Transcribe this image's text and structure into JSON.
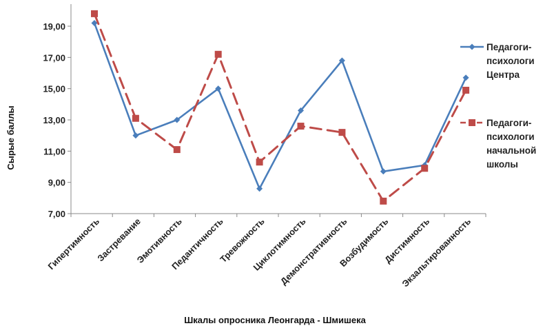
{
  "chart_data": {
    "type": "line",
    "ylabel": "Сырые баллы",
    "xlabel": "Шкалы опросника  Леонгарда - Шмишека",
    "ylim": [
      7,
      20
    ],
    "yticks": [
      "7,00",
      "9,00",
      "11,00",
      "13,00",
      "15,00",
      "17,00",
      "19,00"
    ],
    "grid": false,
    "legend_position": "right",
    "categories": [
      "Гипертимность",
      "Застревание",
      "Эмотивность",
      "Педантичность",
      "Тревожность",
      "Циклотимность",
      "Демонстративность",
      "Возбудимость",
      "Дистимность",
      "Экзальтированность"
    ],
    "series": [
      {
        "name_lines": [
          "Педагоги-",
          "психологи",
          "Центра"
        ],
        "color": "#4a7ebb",
        "style": "solid",
        "marker": "diamond",
        "values": [
          19.2,
          12.0,
          13.0,
          15.0,
          8.6,
          13.6,
          16.8,
          9.7,
          10.1,
          15.7
        ]
      },
      {
        "name_lines": [
          "Педагоги-",
          "психологи",
          "начальной",
          "школы"
        ],
        "color": "#be4b48",
        "style": "dashed",
        "marker": "square",
        "values": [
          19.8,
          13.1,
          11.1,
          17.2,
          10.3,
          12.6,
          12.2,
          7.8,
          9.9,
          14.9
        ]
      }
    ]
  }
}
